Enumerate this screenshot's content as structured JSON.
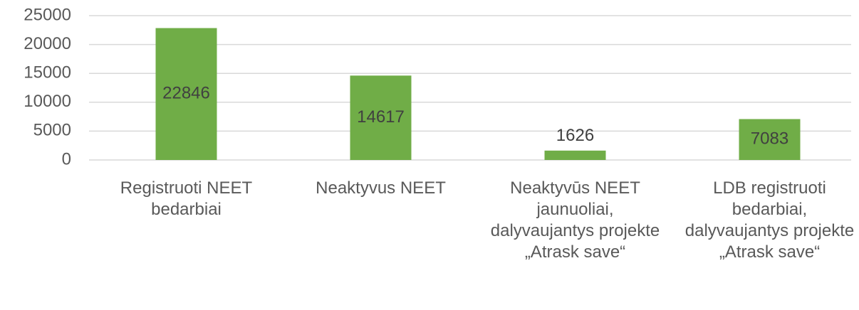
{
  "chart_data": {
    "type": "bar",
    "categories": [
      "Registruoti NEET bedarbiai",
      "Neaktyvus NEET",
      "Neaktyvūs NEET jaunuoliai, dalyvaujantys projekte „Atrask save“",
      "LDB registruoti bedarbiai, dalyvaujantys projekte „Atrask save“"
    ],
    "values": [
      22846,
      14617,
      1626,
      7083
    ],
    "color": "#70ad47",
    "ylim": [
      0,
      25000
    ],
    "yticks": [
      0,
      5000,
      10000,
      15000,
      20000,
      25000
    ],
    "grid": true
  }
}
